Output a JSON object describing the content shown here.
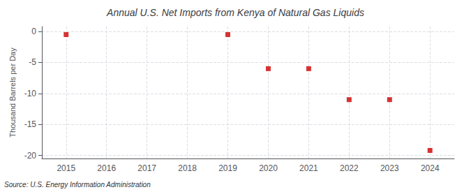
{
  "chart_data": {
    "type": "scatter",
    "title": "Annual U.S. Net Imports from Kenya of Natural Gas Liquids",
    "ylabel": "Thousand Barrels per Day",
    "annotation": "Source: U.S. Energy Information Administration",
    "x": [
      2015,
      2019,
      2020,
      2021,
      2022,
      2023,
      2024
    ],
    "values": [
      -0.5,
      -0.5,
      -6.0,
      -6.0,
      -11.0,
      -11.0,
      -19.2
    ],
    "color": "#cc0000",
    "marker": "square",
    "xlim": [
      2014.4,
      2024.6
    ],
    "xticks": [
      2015,
      2016,
      2017,
      2018,
      2019,
      2020,
      2021,
      2022,
      2023,
      2024
    ],
    "ylim": [
      -20.5,
      0.8
    ],
    "yticks": [
      0,
      -5,
      -10,
      -15,
      -20
    ],
    "grid": true
  }
}
